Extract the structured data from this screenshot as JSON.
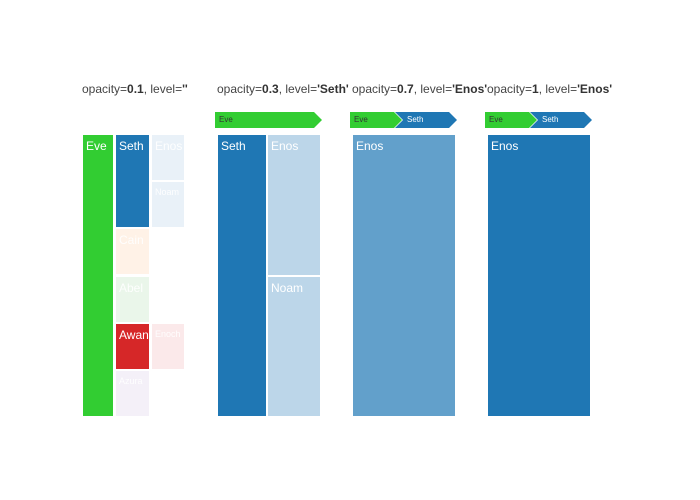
{
  "chart_data": [
    {
      "type": "treemap",
      "title": {
        "prefix": "opacity=",
        "opacity": "0.1",
        "middle": ", level=",
        "level": "''"
      },
      "pathbar": [],
      "tiles": [
        {
          "label": "Eve",
          "color": "#32cd32",
          "opacity": 1
        },
        {
          "label": "Seth",
          "color": "#1f77b4",
          "opacity": 1
        },
        {
          "label": "Enos",
          "color": "#1f77b4",
          "opacity": 0.1
        },
        {
          "label": "Noam",
          "color": "#1f77b4",
          "opacity": 0.1
        },
        {
          "label": "Cain",
          "color": "#ff7f0e",
          "opacity": 0.1
        },
        {
          "label": "Abel",
          "color": "#2ca02c",
          "opacity": 0.1
        },
        {
          "label": "Awan",
          "color": "#d62728",
          "opacity": 1
        },
        {
          "label": "Enoch",
          "color": "#d62728",
          "opacity": 0.1
        },
        {
          "label": "Azura",
          "color": "#9467bd",
          "opacity": 0.1
        }
      ]
    },
    {
      "type": "treemap",
      "title": {
        "prefix": "opacity=",
        "opacity": "0.3",
        "middle": ", level=",
        "level": "'Seth'"
      },
      "pathbar": [
        {
          "label": "Eve",
          "color": "#32cd32"
        }
      ],
      "tiles": [
        {
          "label": "Seth",
          "color": "#1f77b4",
          "opacity": 1
        },
        {
          "label": "Enos",
          "color": "#1f77b4",
          "opacity": 0.3
        },
        {
          "label": "Noam",
          "color": "#1f77b4",
          "opacity": 0.3
        }
      ]
    },
    {
      "type": "treemap",
      "title": {
        "prefix": "opacity=",
        "opacity": "0.7",
        "middle": ", level=",
        "level": "'Enos'"
      },
      "pathbar": [
        {
          "label": "Eve",
          "color": "#32cd32"
        },
        {
          "label": "Seth",
          "color": "#1f77b4"
        }
      ],
      "tiles": [
        {
          "label": "Enos",
          "color": "#1f77b4",
          "opacity": 0.7
        }
      ]
    },
    {
      "type": "treemap",
      "title": {
        "prefix": "opacity=",
        "opacity": "1",
        "middle": ", level=",
        "level": "'Enos'"
      },
      "pathbar": [
        {
          "label": "Eve",
          "color": "#32cd32"
        },
        {
          "label": "Seth",
          "color": "#1f77b4"
        }
      ],
      "tiles": [
        {
          "label": "Enos",
          "color": "#1f77b4",
          "opacity": 1
        }
      ]
    }
  ]
}
